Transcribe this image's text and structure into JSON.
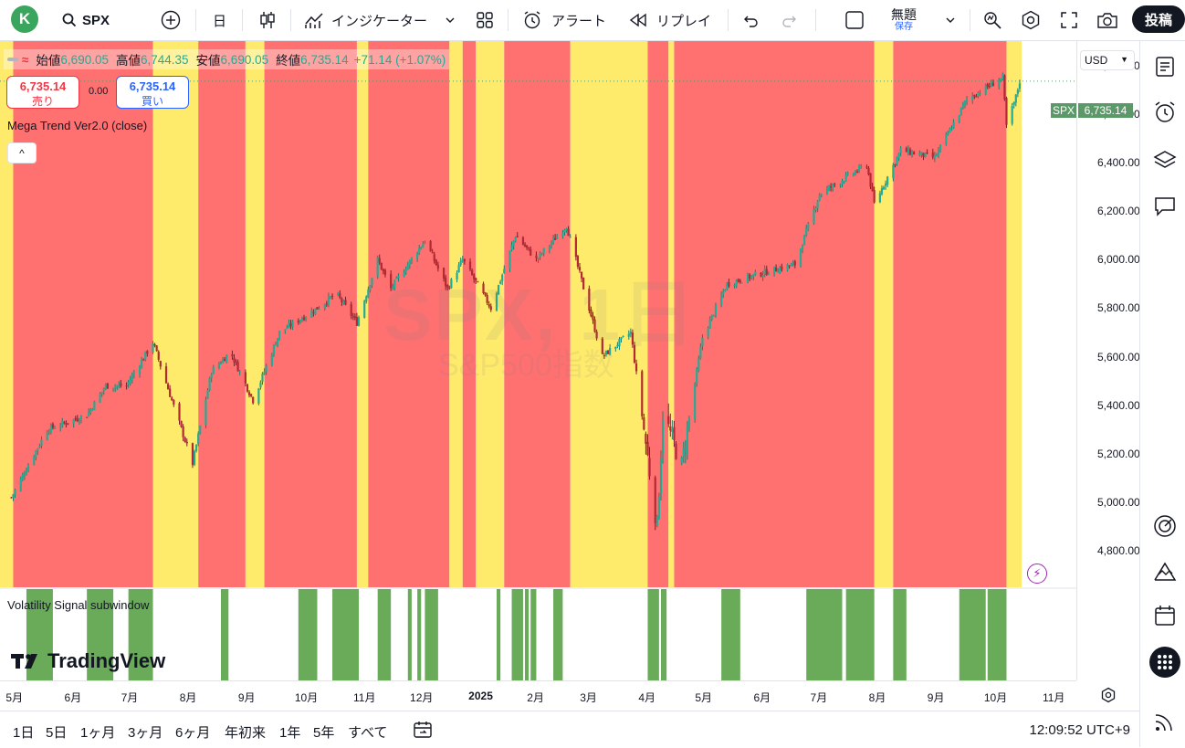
{
  "toolbar": {
    "avatar_letter": "K",
    "symbol": "SPX",
    "interval": "日",
    "indicators_label": "インジケーター",
    "alert_label": "アラート",
    "replay_label": "リプレイ",
    "layout_name": "無題",
    "layout_status": "保存",
    "post_label": "投稿"
  },
  "legend": {
    "open_label": "始値",
    "open": "6,690.05",
    "high_label": "高値",
    "high": "6,744.35",
    "low_label": "安値",
    "low": "6,690.05",
    "close_label": "終値",
    "close": "6,735.14",
    "change": "+71.14 (+1.07%)"
  },
  "trade": {
    "sell_price": "6,735.14",
    "sell_label": "売り",
    "spread": "0.00",
    "buy_price": "6,735.14",
    "buy_label": "買い"
  },
  "indicator_name": "Mega Trend Ver2.0 (close)",
  "subwindow_name": "Volatility Signal subwindow",
  "watermark": {
    "line1": "SPX, 1日",
    "line2": "S&P500指数"
  },
  "logo_text": "TradingView",
  "currency": "USD",
  "price_tag": {
    "symbol": "SPX",
    "value": "6,735.14"
  },
  "price_axis": [
    "6,800.00",
    "6,600.00",
    "6,400.00",
    "6,200.00",
    "6,000.00",
    "5,800.00",
    "5,600.00",
    "5,400.00",
    "5,200.00",
    "5,000.00",
    "4,800.00"
  ],
  "time_axis": [
    "5月",
    "6月",
    "7月",
    "8月",
    "9月",
    "10月",
    "11月",
    "12月",
    "2025",
    "2月",
    "3月",
    "4月",
    "5月",
    "6月",
    "7月",
    "8月",
    "9月",
    "10月",
    "11月"
  ],
  "ranges": [
    "1日",
    "5日",
    "1ヶ月",
    "3ヶ月",
    "6ヶ月",
    "年初来",
    "1年",
    "5年",
    "すべて"
  ],
  "clock": "12:09:52 UTC+9",
  "colors": {
    "bull_zone": "#ff7171",
    "neutral_zone": "#ffeb6b",
    "signal": "#6aab5a",
    "up": "#22ab94",
    "down": "#f23645"
  },
  "chart_data": {
    "type": "candlestick",
    "symbol": "SPX",
    "interval": "1D",
    "ylim": [
      4650,
      6900
    ],
    "price_ticks": [
      4800,
      5000,
      5200,
      5400,
      5600,
      5800,
      6000,
      6200,
      6400,
      6600,
      6800
    ],
    "last_price": 6735.14,
    "close_path": [
      {
        "d": "2024-05-01",
        "p": 5020
      },
      {
        "d": "2024-05-20",
        "p": 5300
      },
      {
        "d": "2024-06-10",
        "p": 5360
      },
      {
        "d": "2024-06-20",
        "p": 5480
      },
      {
        "d": "2024-07-01",
        "p": 5480
      },
      {
        "d": "2024-07-15",
        "p": 5660
      },
      {
        "d": "2024-07-25",
        "p": 5420
      },
      {
        "d": "2024-08-05",
        "p": 5160
      },
      {
        "d": "2024-08-15",
        "p": 5540
      },
      {
        "d": "2024-08-25",
        "p": 5620
      },
      {
        "d": "2024-09-06",
        "p": 5420
      },
      {
        "d": "2024-09-20",
        "p": 5700
      },
      {
        "d": "2024-10-10",
        "p": 5800
      },
      {
        "d": "2024-10-20",
        "p": 5860
      },
      {
        "d": "2024-10-31",
        "p": 5740
      },
      {
        "d": "2024-11-11",
        "p": 6000
      },
      {
        "d": "2024-11-18",
        "p": 5880
      },
      {
        "d": "2024-12-06",
        "p": 6080
      },
      {
        "d": "2024-12-18",
        "p": 5880
      },
      {
        "d": "2024-12-26",
        "p": 6000
      },
      {
        "d": "2025-01-10",
        "p": 5800
      },
      {
        "d": "2025-01-23",
        "p": 6100
      },
      {
        "d": "2025-02-03",
        "p": 6000
      },
      {
        "d": "2025-02-19",
        "p": 6140
      },
      {
        "d": "2025-03-10",
        "p": 5600
      },
      {
        "d": "2025-03-25",
        "p": 5700
      },
      {
        "d": "2025-04-08",
        "p": 4900
      },
      {
        "d": "2025-04-11",
        "p": 5370
      },
      {
        "d": "2025-04-21",
        "p": 5150
      },
      {
        "d": "2025-05-02",
        "p": 5680
      },
      {
        "d": "2025-05-15",
        "p": 5900
      },
      {
        "d": "2025-06-05",
        "p": 5950
      },
      {
        "d": "2025-06-20",
        "p": 5980
      },
      {
        "d": "2025-07-03",
        "p": 6270
      },
      {
        "d": "2025-07-28",
        "p": 6390
      },
      {
        "d": "2025-08-01",
        "p": 6230
      },
      {
        "d": "2025-08-15",
        "p": 6450
      },
      {
        "d": "2025-09-02",
        "p": 6420
      },
      {
        "d": "2025-09-19",
        "p": 6660
      },
      {
        "d": "2025-10-08",
        "p": 6750
      },
      {
        "d": "2025-10-10",
        "p": 6550
      },
      {
        "d": "2025-10-15",
        "p": 6670
      },
      {
        "d": "2025-10-17",
        "p": 6735
      }
    ],
    "zones": [
      {
        "from": "2024-04-25",
        "to": "2024-05-02",
        "state": "yellow"
      },
      {
        "from": "2024-05-02",
        "to": "2024-07-15",
        "state": "red"
      },
      {
        "from": "2024-07-15",
        "to": "2024-08-08",
        "state": "yellow"
      },
      {
        "from": "2024-08-08",
        "to": "2024-09-02",
        "state": "red"
      },
      {
        "from": "2024-09-02",
        "to": "2024-09-12",
        "state": "yellow"
      },
      {
        "from": "2024-09-12",
        "to": "2024-10-31",
        "state": "red"
      },
      {
        "from": "2024-10-31",
        "to": "2024-11-06",
        "state": "yellow"
      },
      {
        "from": "2024-11-06",
        "to": "2024-12-19",
        "state": "red"
      },
      {
        "from": "2024-12-19",
        "to": "2024-12-26",
        "state": "yellow"
      },
      {
        "from": "2024-12-26",
        "to": "2025-01-02",
        "state": "red"
      },
      {
        "from": "2025-01-02",
        "to": "2025-01-17",
        "state": "yellow"
      },
      {
        "from": "2025-01-17",
        "to": "2025-02-21",
        "state": "red"
      },
      {
        "from": "2025-02-21",
        "to": "2025-04-03",
        "state": "yellow"
      },
      {
        "from": "2025-04-03",
        "to": "2025-04-14",
        "state": "red"
      },
      {
        "from": "2025-04-14",
        "to": "2025-04-17",
        "state": "yellow"
      },
      {
        "from": "2025-04-17",
        "to": "2025-08-01",
        "state": "red"
      },
      {
        "from": "2025-08-01",
        "to": "2025-08-11",
        "state": "yellow"
      },
      {
        "from": "2025-08-11",
        "to": "2025-10-10",
        "state": "red"
      },
      {
        "from": "2025-10-10",
        "to": "2025-10-18",
        "state": "yellow"
      }
    ],
    "signal_bars": [
      [
        "2024-05-09",
        "2024-05-23"
      ],
      [
        "2024-06-10",
        "2024-06-24"
      ],
      [
        "2024-07-02",
        "2024-07-15"
      ],
      [
        "2024-08-20",
        "2024-08-24"
      ],
      [
        "2024-09-30",
        "2024-10-10"
      ],
      [
        "2024-10-18",
        "2024-11-01"
      ],
      [
        "2024-11-11",
        "2024-11-18"
      ],
      [
        "2024-11-27",
        "2024-11-29"
      ],
      [
        "2024-12-02",
        "2024-12-04"
      ],
      [
        "2024-12-06",
        "2024-12-13"
      ],
      [
        "2025-01-13",
        "2025-01-15"
      ],
      [
        "2025-01-21",
        "2025-01-27"
      ],
      [
        "2025-01-28",
        "2025-01-30"
      ],
      [
        "2025-01-31",
        "2025-02-03"
      ],
      [
        "2025-02-12",
        "2025-02-17"
      ],
      [
        "2025-04-03",
        "2025-04-09"
      ],
      [
        "2025-04-10",
        "2025-04-13"
      ],
      [
        "2025-05-12",
        "2025-05-22"
      ],
      [
        "2025-06-26",
        "2025-07-15"
      ],
      [
        "2025-07-17",
        "2025-08-01"
      ],
      [
        "2025-08-11",
        "2025-08-18"
      ],
      [
        "2025-09-15",
        "2025-09-29"
      ],
      [
        "2025-09-30",
        "2025-10-10"
      ]
    ]
  }
}
